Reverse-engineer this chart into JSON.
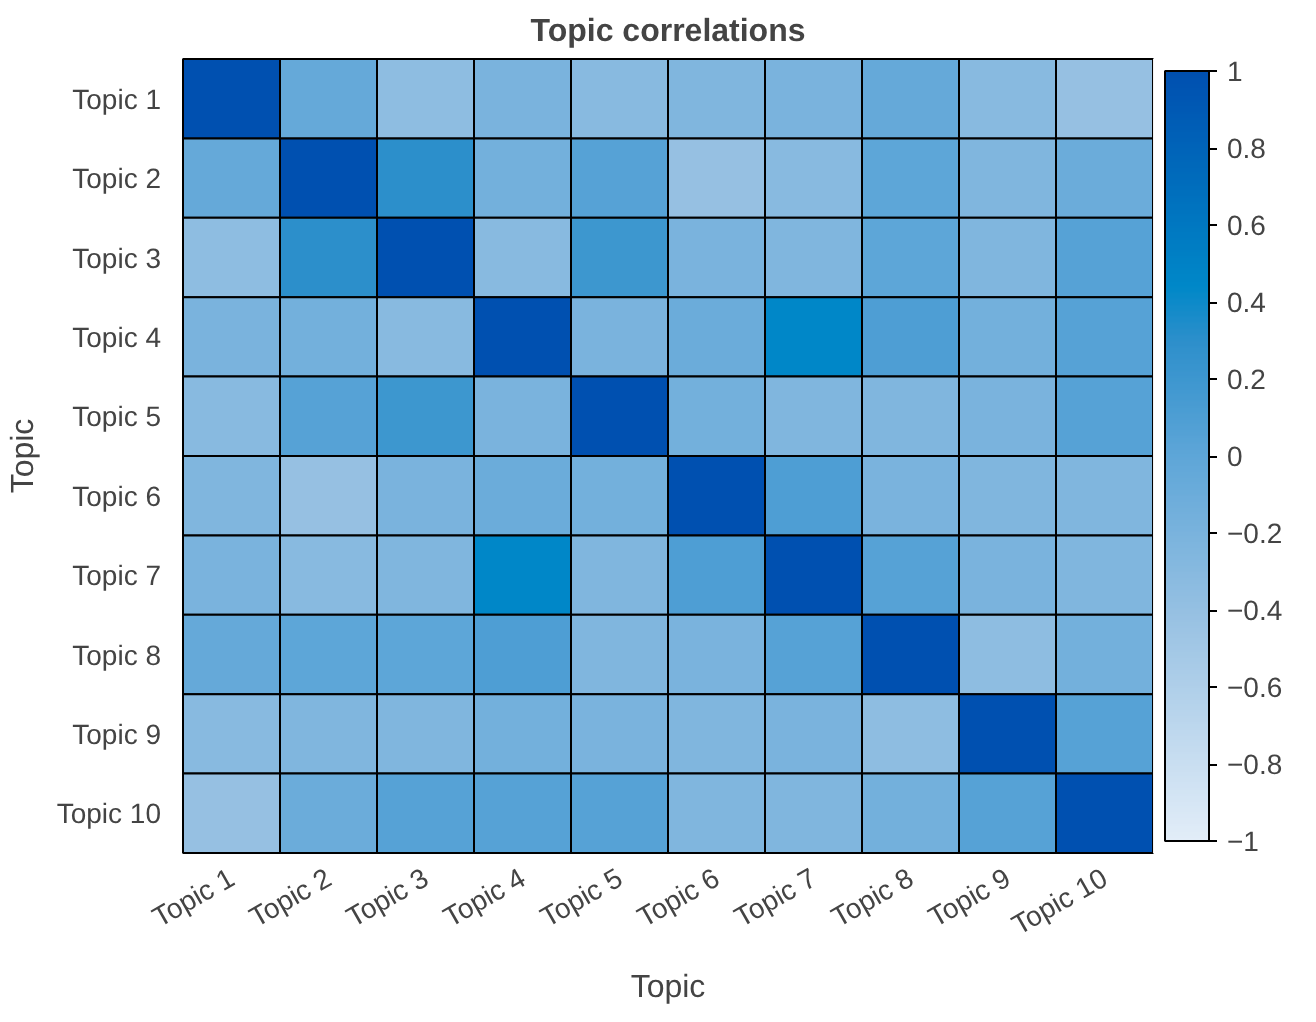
{
  "chart_data": {
    "type": "heatmap",
    "title": "Topic correlations",
    "xlabel": "Topic",
    "ylabel": "Topic",
    "categories": [
      "Topic 1",
      "Topic 2",
      "Topic 3",
      "Topic 4",
      "Topic 5",
      "Topic 6",
      "Topic 7",
      "Topic 8",
      "Topic 9",
      "Topic 10"
    ],
    "y_categories": [
      "Topic 1",
      "Topic 2",
      "Topic 3",
      "Topic 4",
      "Topic 5",
      "Topic 6",
      "Topic 7",
      "Topic 8",
      "Topic 9",
      "Topic 10"
    ],
    "cells": [
      [
        1,
        -0.05,
        -0.35,
        -0.2,
        -0.3,
        -0.25,
        -0.2,
        -0.05,
        -0.3,
        -0.4
      ],
      [
        -0.05,
        1,
        0.3,
        -0.15,
        0.05,
        -0.4,
        -0.3,
        0,
        -0.25,
        -0.1
      ],
      [
        -0.35,
        0.3,
        1,
        -0.3,
        0.2,
        -0.2,
        -0.25,
        0,
        -0.25,
        0.05
      ],
      [
        -0.2,
        -0.15,
        -0.3,
        1,
        -0.2,
        -0.1,
        0.45,
        0.1,
        -0.15,
        0.05
      ],
      [
        -0.3,
        0.05,
        0.2,
        -0.2,
        1,
        -0.15,
        -0.25,
        -0.25,
        -0.2,
        0.05
      ],
      [
        -0.25,
        -0.4,
        -0.2,
        -0.1,
        -0.15,
        1,
        0.1,
        -0.2,
        -0.25,
        -0.25
      ],
      [
        -0.2,
        -0.3,
        -0.25,
        0.45,
        -0.25,
        0.1,
        1,
        0.05,
        -0.2,
        -0.25
      ],
      [
        -0.05,
        0,
        0,
        0.1,
        -0.25,
        -0.2,
        0.05,
        1,
        -0.35,
        -0.15
      ],
      [
        -0.3,
        -0.25,
        -0.25,
        -0.15,
        -0.2,
        -0.25,
        -0.2,
        -0.35,
        1,
        0.05
      ],
      [
        -0.4,
        -0.1,
        0.05,
        0.05,
        0.05,
        -0.25,
        -0.25,
        -0.15,
        0.05,
        1
      ]
    ],
    "clim": [
      -1,
      1
    ],
    "cticks": [
      -1,
      -0.8,
      -0.6,
      -0.4,
      -0.2,
      0,
      0.2,
      0.4,
      0.6,
      0.8,
      1
    ]
  }
}
